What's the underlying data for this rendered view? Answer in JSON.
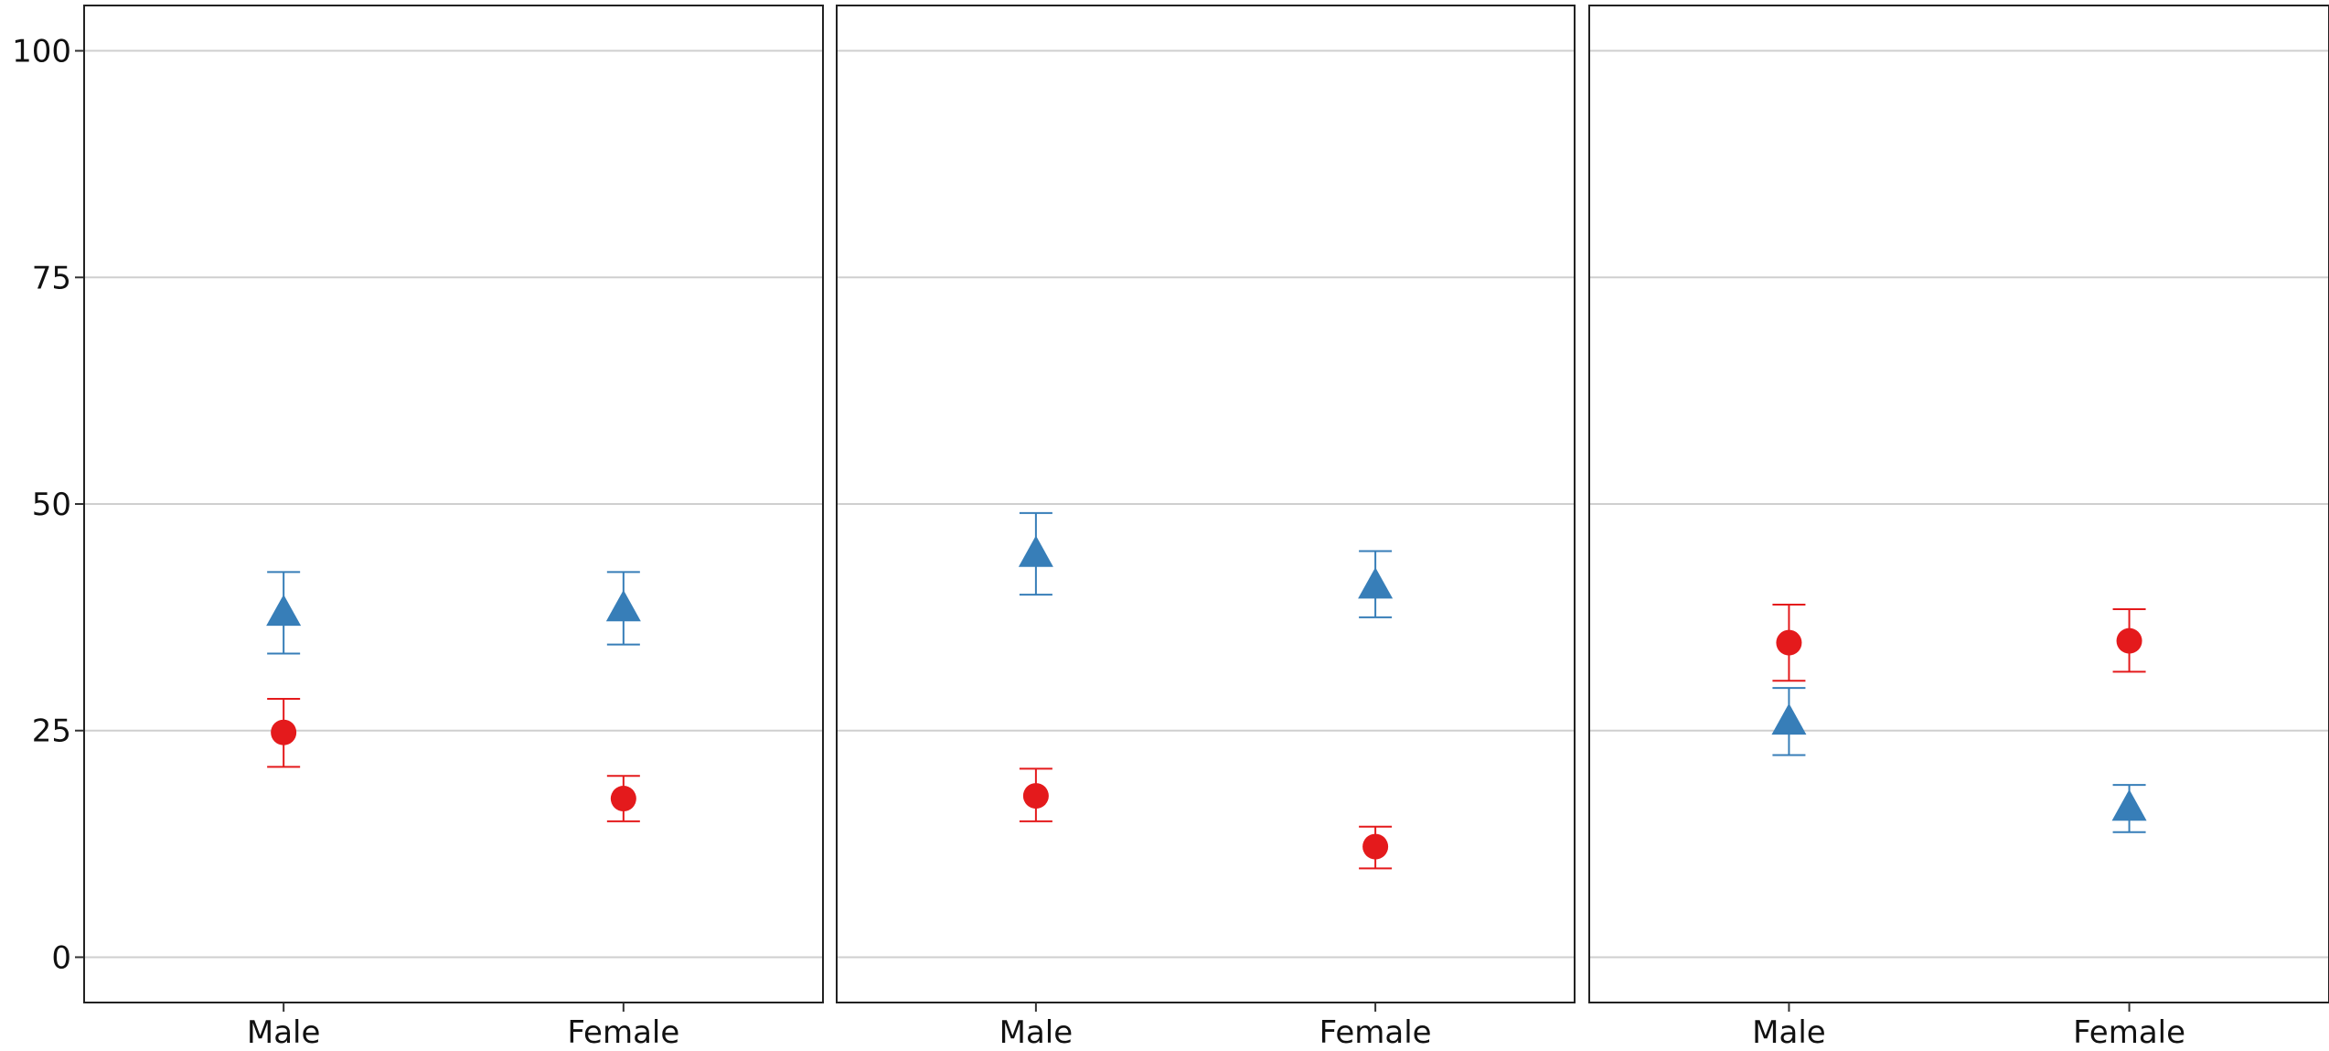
{
  "chart_data": {
    "type": "scatter",
    "subtype": "point-range (mean with error bars)",
    "facets": 3,
    "categories": [
      "Male",
      "Female"
    ],
    "y_ticks": [
      "0",
      "25",
      "50",
      "75",
      "100"
    ],
    "ylim": [
      -5,
      105
    ],
    "grid": "horizontal",
    "legend": "none",
    "panels": [
      {
        "series": [
          {
            "marker": "triangle",
            "color": "#377EB8",
            "points": [
              {
                "x": "Male",
                "y": 38,
                "lo": 33.5,
                "hi": 42.5
              },
              {
                "x": "Female",
                "y": 38.5,
                "lo": 34.5,
                "hi": 42.5
              }
            ]
          },
          {
            "marker": "circle",
            "color": "#E41A1C",
            "points": [
              {
                "x": "Male",
                "y": 24.8,
                "lo": 21,
                "hi": 28.5
              },
              {
                "x": "Female",
                "y": 17.5,
                "lo": 15,
                "hi": 20
              }
            ]
          }
        ]
      },
      {
        "series": [
          {
            "marker": "triangle",
            "color": "#377EB8",
            "points": [
              {
                "x": "Male",
                "y": 44.5,
                "lo": 40,
                "hi": 49
              },
              {
                "x": "Female",
                "y": 41,
                "lo": 37.5,
                "hi": 44.8
              }
            ]
          },
          {
            "marker": "circle",
            "color": "#E41A1C",
            "points": [
              {
                "x": "Male",
                "y": 17.8,
                "lo": 15,
                "hi": 20.8
              },
              {
                "x": "Female",
                "y": 12.2,
                "lo": 9.8,
                "hi": 14.4
              }
            ]
          }
        ]
      },
      {
        "series": [
          {
            "marker": "circle",
            "color": "#E41A1C",
            "points": [
              {
                "x": "Male",
                "y": 34.7,
                "lo": 30.5,
                "hi": 38.9
              },
              {
                "x": "Female",
                "y": 34.9,
                "lo": 31.5,
                "hi": 38.4
              }
            ]
          },
          {
            "marker": "triangle",
            "color": "#377EB8",
            "points": [
              {
                "x": "Male",
                "y": 26,
                "lo": 22.3,
                "hi": 29.7
              },
              {
                "x": "Female",
                "y": 16.5,
                "lo": 13.8,
                "hi": 19
              }
            ]
          }
        ]
      }
    ]
  }
}
